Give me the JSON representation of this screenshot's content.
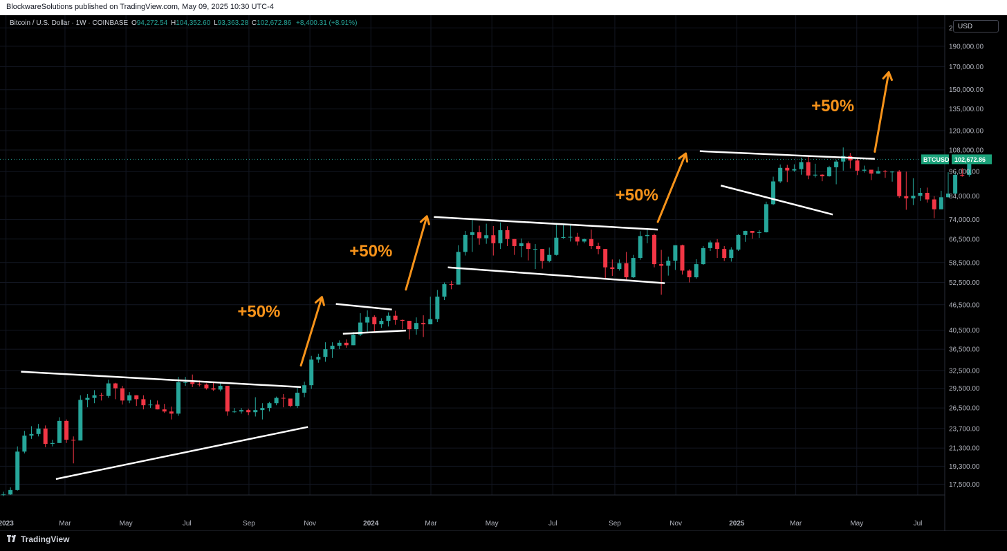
{
  "publish_line": "BlockwareSolutions published on TradingView.com, May 09, 2025 10:30 UTC-4",
  "legend": {
    "symbol": "Bitcoin / U.S. Dollar · 1W · COINBASE",
    "o_label": "O",
    "o_value": "94,272.54",
    "h_label": "H",
    "h_value": "104,352.60",
    "l_label": "L",
    "l_value": "93,363.28",
    "c_label": "C",
    "c_value": "102,672.86",
    "change": "+8,400.31 (+8.91%)"
  },
  "currency": "USD",
  "brand": "TradingView",
  "price_tag": {
    "ticker": "BTCUSD",
    "value": "102,672.86"
  },
  "colors": {
    "up": "#26a69a",
    "down": "#f23645",
    "annotation": "#f7931a",
    "trendline": "#ffffff",
    "tag": "#1ba27a"
  },
  "chart_data": {
    "type": "candlestick",
    "interval": "1W",
    "scale": "log",
    "ylim": [
      16500,
      225000
    ],
    "x_range": [
      "2022-12-26",
      "2025-07-28"
    ],
    "y_ticks": [
      "210,000.00",
      "190,000.00",
      "170,000.00",
      "150,000.00",
      "135,000.00",
      "120,000.00",
      "108,000.00",
      "96,000.00",
      "84,000.00",
      "74,000.00",
      "66,500.00",
      "58,500.00",
      "52,500.00",
      "46,500.00",
      "40,500.00",
      "36,500.00",
      "32,500.00",
      "29,500.00",
      "26,500.00",
      "23,700.00",
      "21,300.00",
      "19,300.00",
      "17,500.00"
    ],
    "y_tick_values": [
      210000,
      190000,
      170000,
      150000,
      135000,
      120000,
      108000,
      96000,
      84000,
      74000,
      66500,
      58500,
      52500,
      46500,
      40500,
      36500,
      32500,
      29500,
      26500,
      23700,
      21300,
      19300,
      17500
    ],
    "x_ticks": [
      {
        "label": "2023",
        "date": "2023-01-01",
        "bold": true
      },
      {
        "label": "Mar",
        "date": "2023-03-01"
      },
      {
        "label": "May",
        "date": "2023-05-01"
      },
      {
        "label": "Jul",
        "date": "2023-07-01"
      },
      {
        "label": "Sep",
        "date": "2023-09-01"
      },
      {
        "label": "Nov",
        "date": "2023-11-01"
      },
      {
        "label": "2024",
        "date": "2024-01-01",
        "bold": true
      },
      {
        "label": "Mar",
        "date": "2024-03-01"
      },
      {
        "label": "May",
        "date": "2024-05-01"
      },
      {
        "label": "Jul",
        "date": "2024-07-01"
      },
      {
        "label": "Sep",
        "date": "2024-09-01"
      },
      {
        "label": "Nov",
        "date": "2024-11-01"
      },
      {
        "label": "2025",
        "date": "2025-01-01",
        "bold": true
      },
      {
        "label": "Mar",
        "date": "2025-03-01"
      },
      {
        "label": "May",
        "date": "2025-05-01"
      },
      {
        "label": "Jul",
        "date": "2025-07-01"
      }
    ],
    "last_price": 102672.86,
    "first_week": "2022-12-26",
    "closes": [
      16550,
      16950,
      20900,
      22800,
      23000,
      23700,
      21800,
      21900,
      24700,
      22300,
      22200,
      27700,
      28000,
      28400,
      28300,
      30300,
      29500,
      27600,
      28400,
      27800,
      26900,
      27000,
      26300,
      26000,
      25700,
      30500,
      30500,
      30200,
      30100,
      29500,
      29300,
      29900,
      26000,
      26000,
      26200,
      25900,
      26200,
      26500,
      27200,
      28000,
      27900,
      26800,
      28800,
      30000,
      34500,
      35000,
      36500,
      37200,
      37800,
      37300,
      39500,
      42200,
      43500,
      41800,
      42600,
      43800,
      42800,
      42600,
      40700,
      42100,
      41800,
      43000,
      48600,
      52000,
      51900,
      62000,
      68000,
      69000,
      66800,
      67900,
      65000,
      69800,
      66500,
      64000,
      65000,
      63000,
      63000,
      59000,
      61000,
      67000,
      67200,
      67300,
      65600,
      66500,
      64000,
      63000,
      57000,
      56500,
      58300,
      54000,
      60000,
      67600,
      68000,
      58000,
      57500,
      59100,
      64300,
      56000,
      54000,
      58000,
      63300,
      65300,
      63000,
      60000,
      62800,
      68000,
      69500,
      68800,
      69000,
      80400,
      91000,
      98000,
      96600,
      97300,
      101100,
      94000,
      94400,
      93600,
      98300,
      101400,
      104500,
      102000,
      96500,
      97000,
      95000,
      96300,
      96000,
      96000,
      84000,
      83000,
      84200,
      85500,
      82500,
      78200,
      83500,
      85200,
      94300,
      94272.54,
      102672.86
    ],
    "wicks": [
      [
        16400,
        16800
      ],
      [
        16500,
        17200
      ],
      [
        16900,
        21500
      ],
      [
        20700,
        23400
      ],
      [
        22400,
        24000
      ],
      [
        22700,
        24300
      ],
      [
        21400,
        24100
      ],
      [
        21500,
        22300
      ],
      [
        21900,
        25200
      ],
      [
        21900,
        24900
      ],
      [
        19600,
        22700
      ],
      [
        22200,
        28400
      ],
      [
        26600,
        28600
      ],
      [
        27200,
        29200
      ],
      [
        27600,
        28800
      ],
      [
        28000,
        30900
      ],
      [
        27800,
        30400
      ],
      [
        27000,
        29900
      ],
      [
        27200,
        28900
      ],
      [
        26800,
        28400
      ],
      [
        26300,
        28400
      ],
      [
        26500,
        27700
      ],
      [
        26300,
        27600
      ],
      [
        25800,
        27100
      ],
      [
        24900,
        26700
      ],
      [
        25400,
        31400
      ],
      [
        29900,
        31400
      ],
      [
        29700,
        31800
      ],
      [
        29800,
        30800
      ],
      [
        29300,
        30300
      ],
      [
        29100,
        30400
      ],
      [
        29000,
        30400
      ],
      [
        25400,
        29600
      ],
      [
        25800,
        26500
      ],
      [
        25700,
        26500
      ],
      [
        25500,
        26400
      ],
      [
        25300,
        28100
      ],
      [
        24900,
        27200
      ],
      [
        26000,
        27400
      ],
      [
        26900,
        28200
      ],
      [
        26600,
        28600
      ],
      [
        26600,
        27900
      ],
      [
        26500,
        29600
      ],
      [
        28100,
        30600
      ],
      [
        29400,
        35200
      ],
      [
        33900,
        35600
      ],
      [
        34100,
        37900
      ],
      [
        34800,
        37900
      ],
      [
        36500,
        38300
      ],
      [
        36800,
        38500
      ],
      [
        37300,
        40100
      ],
      [
        39200,
        44400
      ],
      [
        40200,
        45100
      ],
      [
        40000,
        43900
      ],
      [
        41000,
        43200
      ],
      [
        41300,
        44600
      ],
      [
        41700,
        45000
      ],
      [
        40700,
        42900
      ],
      [
        38500,
        41700
      ],
      [
        39500,
        43400
      ],
      [
        39000,
        43900
      ],
      [
        41800,
        48600
      ],
      [
        42300,
        50400
      ],
      [
        47700,
        52500
      ],
      [
        50600,
        53000
      ],
      [
        51900,
        64300
      ],
      [
        60800,
        69500
      ],
      [
        62000,
        73800
      ],
      [
        64500,
        71500
      ],
      [
        64800,
        72300
      ],
      [
        60800,
        71400
      ],
      [
        63000,
        72800
      ],
      [
        64000,
        71300
      ],
      [
        61000,
        64400
      ],
      [
        60200,
        66700
      ],
      [
        59200,
        65600
      ],
      [
        56500,
        64700
      ],
      [
        56600,
        61700
      ],
      [
        58600,
        63500
      ],
      [
        60800,
        71900
      ],
      [
        66600,
        71700
      ],
      [
        65600,
        72000
      ],
      [
        64200,
        68800
      ],
      [
        65000,
        66700
      ],
      [
        63000,
        70000
      ],
      [
        61200,
        65200
      ],
      [
        53500,
        62500
      ],
      [
        54400,
        59500
      ],
      [
        56000,
        59500
      ],
      [
        53200,
        62000
      ],
      [
        53800,
        61000
      ],
      [
        59400,
        69400
      ],
      [
        65000,
        69900
      ],
      [
        57000,
        68500
      ],
      [
        49100,
        62700
      ],
      [
        54500,
        60400
      ],
      [
        56200,
        62000
      ],
      [
        54800,
        64500
      ],
      [
        52500,
        56400
      ],
      [
        53600,
        59600
      ],
      [
        57800,
        64000
      ],
      [
        62300,
        66000
      ],
      [
        60000,
        66500
      ],
      [
        59000,
        64000
      ],
      [
        58800,
        63600
      ],
      [
        62300,
        68300
      ],
      [
        65500,
        69600
      ],
      [
        66600,
        69200
      ],
      [
        66900,
        69800
      ],
      [
        68900,
        81500
      ],
      [
        80000,
        93400
      ],
      [
        90200,
        99800
      ],
      [
        90700,
        99600
      ],
      [
        95900,
        99900
      ],
      [
        94400,
        103600
      ],
      [
        92100,
        104300
      ],
      [
        93000,
        100200
      ],
      [
        91100,
        94700
      ],
      [
        93400,
        99100
      ],
      [
        89600,
        102400
      ],
      [
        96500,
        109500
      ],
      [
        97700,
        106300
      ],
      [
        94200,
        103100
      ],
      [
        95500,
        99200
      ],
      [
        91700,
        96800
      ],
      [
        94800,
        98500
      ],
      [
        92800,
        96800
      ],
      [
        90900,
        96300
      ],
      [
        83200,
        96800
      ],
      [
        78000,
        96000
      ],
      [
        80000,
        92600
      ],
      [
        81800,
        87800
      ],
      [
        81100,
        88000
      ],
      [
        74500,
        84000
      ],
      [
        82200,
        86500
      ],
      [
        83400,
        95700
      ],
      [
        87200,
        95800
      ],
      [
        93363.28,
        97800
      ],
      [
        93363.28,
        104352.6
      ]
    ]
  },
  "annotations": [
    {
      "text": "+50%"
    },
    {
      "text": "+50%"
    },
    {
      "text": "+50%"
    },
    {
      "text": "+50%"
    }
  ]
}
